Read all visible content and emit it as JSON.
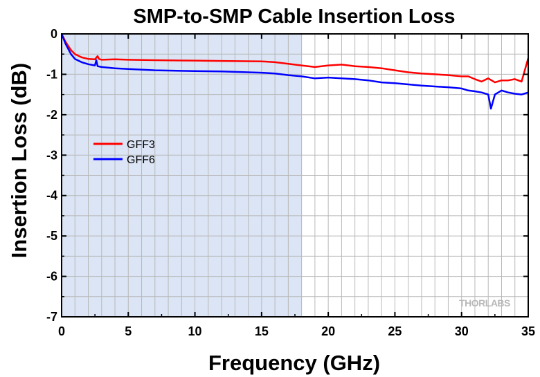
{
  "chart_data": {
    "type": "line",
    "title": "SMP-to-SMP Cable Insertion Loss",
    "xlabel": "Frequency (GHz)",
    "ylabel": "Insertion Loss (dB)",
    "xlim": [
      0,
      35
    ],
    "ylim": [
      -7,
      0
    ],
    "x_ticks": [
      "0",
      "5",
      "10",
      "15",
      "20",
      "25",
      "30",
      "35"
    ],
    "y_ticks": [
      "0",
      "-1",
      "-2",
      "-3",
      "-4",
      "-5",
      "-6",
      "-7"
    ],
    "grid": true,
    "legend_position": "left, upper-middle",
    "highlight_band": {
      "x_from": 0,
      "x_to": 18,
      "color": "#dbe5f5"
    },
    "watermark": "THORLABS",
    "series": [
      {
        "name": "GFF3",
        "color": "#ff0000",
        "x": [
          0,
          0.3,
          0.7,
          1,
          1.5,
          2,
          2.5,
          2.7,
          2.8,
          3,
          4,
          5,
          7,
          10,
          12,
          15,
          16,
          17,
          18,
          19,
          20,
          21,
          22,
          23,
          24,
          25,
          26,
          27,
          28,
          29,
          30,
          30.5,
          31,
          31.5,
          32,
          32.5,
          33,
          33.5,
          34,
          34.5,
          35
        ],
        "y": [
          0,
          -0.2,
          -0.4,
          -0.5,
          -0.58,
          -0.62,
          -0.63,
          -0.55,
          -0.62,
          -0.64,
          -0.63,
          -0.64,
          -0.65,
          -0.66,
          -0.67,
          -0.68,
          -0.7,
          -0.74,
          -0.78,
          -0.82,
          -0.78,
          -0.76,
          -0.8,
          -0.82,
          -0.85,
          -0.9,
          -0.95,
          -0.98,
          -1.0,
          -1.02,
          -1.05,
          -1.05,
          -1.12,
          -1.18,
          -1.1,
          -1.2,
          -1.15,
          -1.15,
          -1.12,
          -1.18,
          -0.6
        ]
      },
      {
        "name": "GFF6",
        "color": "#0000ff",
        "x": [
          0,
          0.3,
          0.7,
          1,
          1.5,
          2,
          2.5,
          2.6,
          2.7,
          3,
          4,
          5,
          7,
          10,
          12,
          15,
          16,
          17,
          18,
          19,
          20,
          21,
          22,
          23,
          24,
          25,
          26,
          27,
          28,
          29,
          30,
          30.5,
          31,
          31.5,
          32,
          32.2,
          32.5,
          33,
          33.5,
          34,
          34.5,
          35
        ],
        "y": [
          0,
          -0.25,
          -0.5,
          -0.62,
          -0.7,
          -0.75,
          -0.78,
          -0.65,
          -0.8,
          -0.82,
          -0.85,
          -0.87,
          -0.9,
          -0.92,
          -0.93,
          -0.96,
          -0.98,
          -1.02,
          -1.05,
          -1.1,
          -1.08,
          -1.1,
          -1.12,
          -1.15,
          -1.2,
          -1.22,
          -1.25,
          -1.28,
          -1.3,
          -1.32,
          -1.35,
          -1.4,
          -1.42,
          -1.45,
          -1.5,
          -1.85,
          -1.5,
          -1.4,
          -1.45,
          -1.48,
          -1.5,
          -1.45
        ]
      }
    ]
  }
}
